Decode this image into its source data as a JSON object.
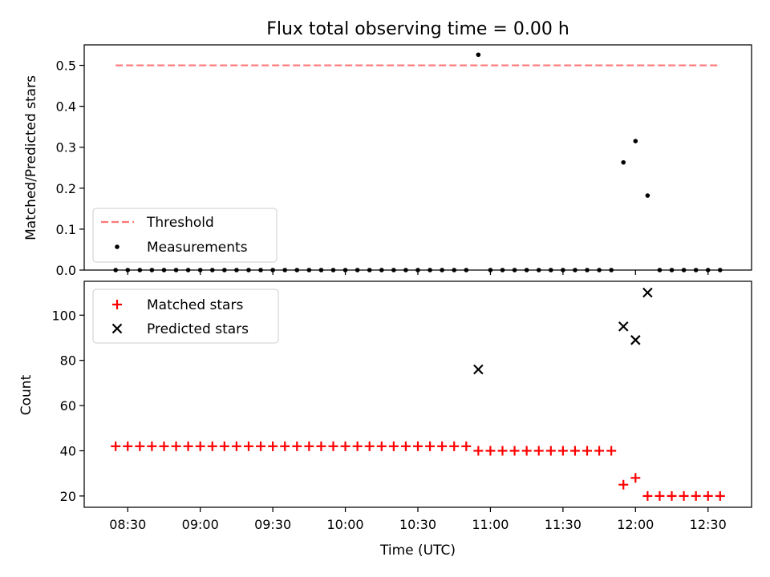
{
  "chart_data": [
    {
      "type": "scatter",
      "panel": "top",
      "title": "Flux total observing time = 0.00 h",
      "xlabel": "",
      "ylabel": "Matched/Predicted stars",
      "ylim": [
        0,
        0.55
      ],
      "yticks": [
        0.0,
        0.1,
        0.2,
        0.3,
        0.4,
        0.5
      ],
      "ytick_labels": [
        "0.0",
        "0.1",
        "0.2",
        "0.3",
        "0.4",
        "0.5"
      ],
      "legend_position": "lower-left",
      "series": [
        {
          "name": "Threshold",
          "kind": "line",
          "style": "dashed",
          "color": "#ff7777",
          "x": [
            "08:25",
            "12:35"
          ],
          "y": [
            0.5,
            0.5
          ]
        },
        {
          "name": "Measurements",
          "kind": "scatter",
          "marker": "dot",
          "color": "#000000",
          "points": [
            [
              "08:25",
              0.0
            ],
            [
              "08:30",
              0.0
            ],
            [
              "08:35",
              0.0
            ],
            [
              "08:40",
              0.0
            ],
            [
              "08:45",
              0.0
            ],
            [
              "08:50",
              0.0
            ],
            [
              "08:55",
              0.0
            ],
            [
              "09:00",
              0.0
            ],
            [
              "09:05",
              0.0
            ],
            [
              "09:10",
              0.0
            ],
            [
              "09:15",
              0.0
            ],
            [
              "09:20",
              0.0
            ],
            [
              "09:25",
              0.0
            ],
            [
              "09:30",
              0.0
            ],
            [
              "09:35",
              0.0
            ],
            [
              "09:40",
              0.0
            ],
            [
              "09:45",
              0.0
            ],
            [
              "09:50",
              0.0
            ],
            [
              "09:55",
              0.0
            ],
            [
              "10:00",
              0.0
            ],
            [
              "10:05",
              0.0
            ],
            [
              "10:10",
              0.0
            ],
            [
              "10:15",
              0.0
            ],
            [
              "10:20",
              0.0
            ],
            [
              "10:25",
              0.0
            ],
            [
              "10:30",
              0.0
            ],
            [
              "10:35",
              0.0
            ],
            [
              "10:40",
              0.0
            ],
            [
              "10:45",
              0.0
            ],
            [
              "10:50",
              0.0
            ],
            [
              "10:55",
              0.526
            ],
            [
              "11:00",
              0.0
            ],
            [
              "11:05",
              0.0
            ],
            [
              "11:10",
              0.0
            ],
            [
              "11:15",
              0.0
            ],
            [
              "11:20",
              0.0
            ],
            [
              "11:25",
              0.0
            ],
            [
              "11:30",
              0.0
            ],
            [
              "11:35",
              0.0
            ],
            [
              "11:40",
              0.0
            ],
            [
              "11:45",
              0.0
            ],
            [
              "11:50",
              0.0
            ],
            [
              "11:55",
              0.263
            ],
            [
              "12:00",
              0.315
            ],
            [
              "12:05",
              0.182
            ],
            [
              "12:10",
              0.0
            ],
            [
              "12:15",
              0.0
            ],
            [
              "12:20",
              0.0
            ],
            [
              "12:25",
              0.0
            ],
            [
              "12:30",
              0.0
            ],
            [
              "12:35",
              0.0
            ]
          ]
        }
      ]
    },
    {
      "type": "scatter",
      "panel": "bottom",
      "title": "",
      "xlabel": "Time (UTC)",
      "ylabel": "Count",
      "ylim": [
        15,
        115
      ],
      "yticks": [
        20,
        40,
        60,
        80,
        100
      ],
      "ytick_labels": [
        "20",
        "40",
        "60",
        "80",
        "100"
      ],
      "xlim": [
        "08:12",
        "12:48"
      ],
      "xticks": [
        "08:30",
        "09:00",
        "09:30",
        "10:00",
        "10:30",
        "11:00",
        "11:30",
        "12:00",
        "12:30"
      ],
      "xtick_labels": [
        "08:30",
        "09:00",
        "09:30",
        "10:00",
        "10:30",
        "11:00",
        "11:30",
        "12:00",
        "12:30"
      ],
      "legend_position": "upper-left",
      "series": [
        {
          "name": "Matched stars",
          "kind": "scatter",
          "marker": "plus",
          "color": "#ff0000",
          "points": [
            [
              "08:25",
              42
            ],
            [
              "08:30",
              42
            ],
            [
              "08:35",
              42
            ],
            [
              "08:40",
              42
            ],
            [
              "08:45",
              42
            ],
            [
              "08:50",
              42
            ],
            [
              "08:55",
              42
            ],
            [
              "09:00",
              42
            ],
            [
              "09:05",
              42
            ],
            [
              "09:10",
              42
            ],
            [
              "09:15",
              42
            ],
            [
              "09:20",
              42
            ],
            [
              "09:25",
              42
            ],
            [
              "09:30",
              42
            ],
            [
              "09:35",
              42
            ],
            [
              "09:40",
              42
            ],
            [
              "09:45",
              42
            ],
            [
              "09:50",
              42
            ],
            [
              "09:55",
              42
            ],
            [
              "10:00",
              42
            ],
            [
              "10:05",
              42
            ],
            [
              "10:10",
              42
            ],
            [
              "10:15",
              42
            ],
            [
              "10:20",
              42
            ],
            [
              "10:25",
              42
            ],
            [
              "10:30",
              42
            ],
            [
              "10:35",
              42
            ],
            [
              "10:40",
              42
            ],
            [
              "10:45",
              42
            ],
            [
              "10:50",
              42
            ],
            [
              "10:55",
              40
            ],
            [
              "11:00",
              40
            ],
            [
              "11:05",
              40
            ],
            [
              "11:10",
              40
            ],
            [
              "11:15",
              40
            ],
            [
              "11:20",
              40
            ],
            [
              "11:25",
              40
            ],
            [
              "11:30",
              40
            ],
            [
              "11:35",
              40
            ],
            [
              "11:40",
              40
            ],
            [
              "11:45",
              40
            ],
            [
              "11:50",
              40
            ],
            [
              "11:55",
              25
            ],
            [
              "12:00",
              28
            ],
            [
              "12:05",
              20
            ],
            [
              "12:10",
              20
            ],
            [
              "12:15",
              20
            ],
            [
              "12:20",
              20
            ],
            [
              "12:25",
              20
            ],
            [
              "12:30",
              20
            ],
            [
              "12:35",
              20
            ]
          ]
        },
        {
          "name": "Predicted stars",
          "kind": "scatter",
          "marker": "x",
          "color": "#000000",
          "points": [
            [
              "10:55",
              76
            ],
            [
              "11:55",
              95
            ],
            [
              "12:00",
              89
            ],
            [
              "12:05",
              110
            ]
          ]
        }
      ]
    }
  ]
}
